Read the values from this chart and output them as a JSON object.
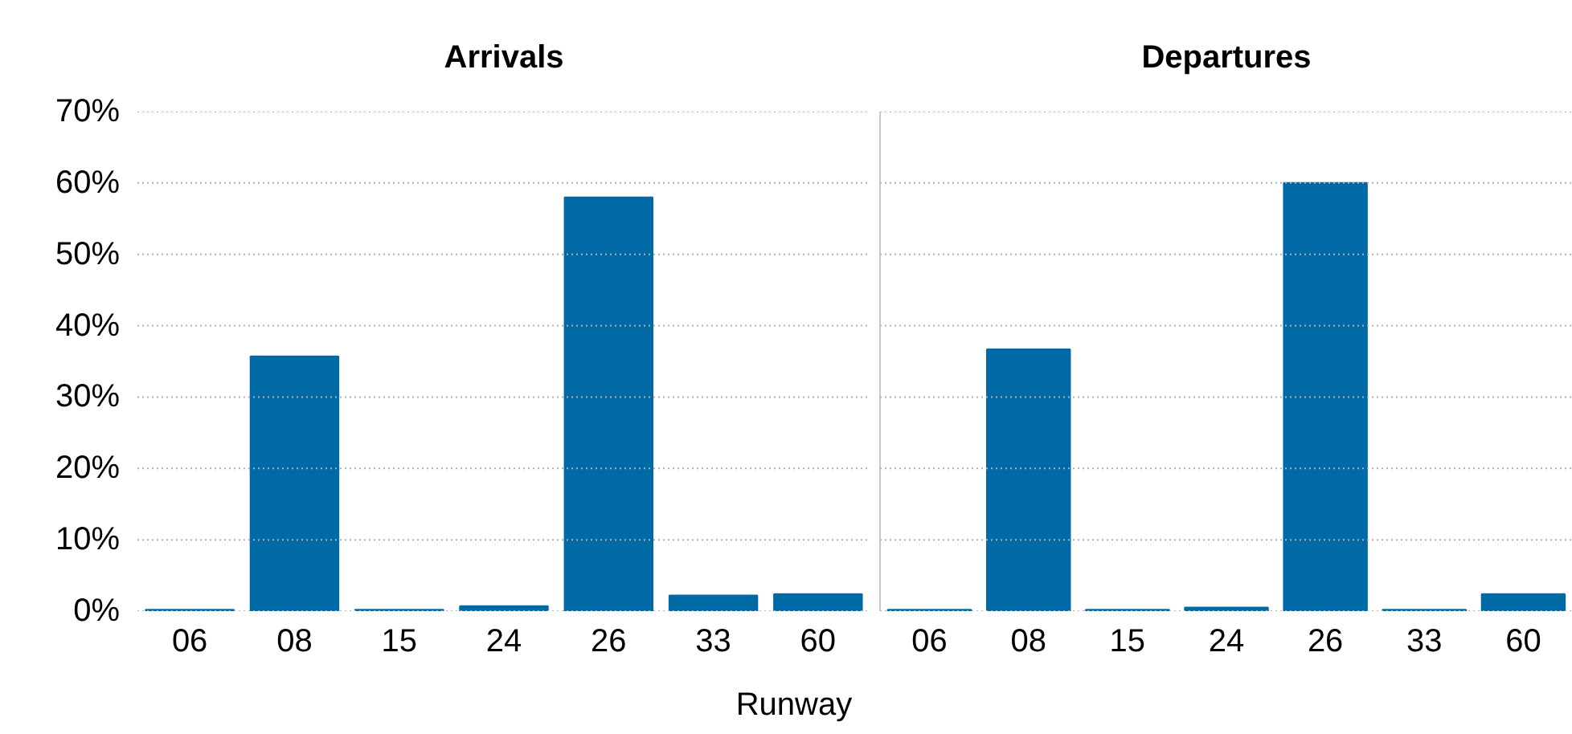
{
  "chart_data": [
    {
      "type": "bar",
      "title": "Arrivals",
      "xlabel": "Runway",
      "categories": [
        "06",
        "08",
        "15",
        "24",
        "26",
        "33",
        "60"
      ],
      "values": [
        0.2,
        35.7,
        0.2,
        0.7,
        58.0,
        2.2,
        2.4
      ],
      "color": "#006aa6",
      "ylim": [
        0,
        70
      ],
      "yticks": [
        {
          "value": 0,
          "label": "0%"
        },
        {
          "value": 10,
          "label": "10%"
        },
        {
          "value": 20,
          "label": "20%"
        },
        {
          "value": 30,
          "label": "30%"
        },
        {
          "value": 40,
          "label": "40%"
        },
        {
          "value": 50,
          "label": "50%"
        },
        {
          "value": 60,
          "label": "60%"
        },
        {
          "value": 70,
          "label": "70%"
        }
      ],
      "grid": "y"
    },
    {
      "type": "bar",
      "title": "Departures",
      "categories": [
        "06",
        "08",
        "15",
        "24",
        "26",
        "33",
        "60"
      ],
      "values": [
        0.2,
        36.7,
        0.2,
        0.5,
        60.0,
        0.2,
        2.4
      ],
      "color": "#006aa6",
      "ylim": [
        0,
        70
      ],
      "yticks": [
        {
          "value": 0,
          "label": null
        },
        {
          "value": 10,
          "label": null
        },
        {
          "value": 20,
          "label": null
        },
        {
          "value": 30,
          "label": null
        },
        {
          "value": 40,
          "label": null
        },
        {
          "value": 50,
          "label": null
        },
        {
          "value": 60,
          "label": null
        },
        {
          "value": 70,
          "label": null
        }
      ],
      "grid": "y",
      "tick_labels": "x"
    }
  ]
}
